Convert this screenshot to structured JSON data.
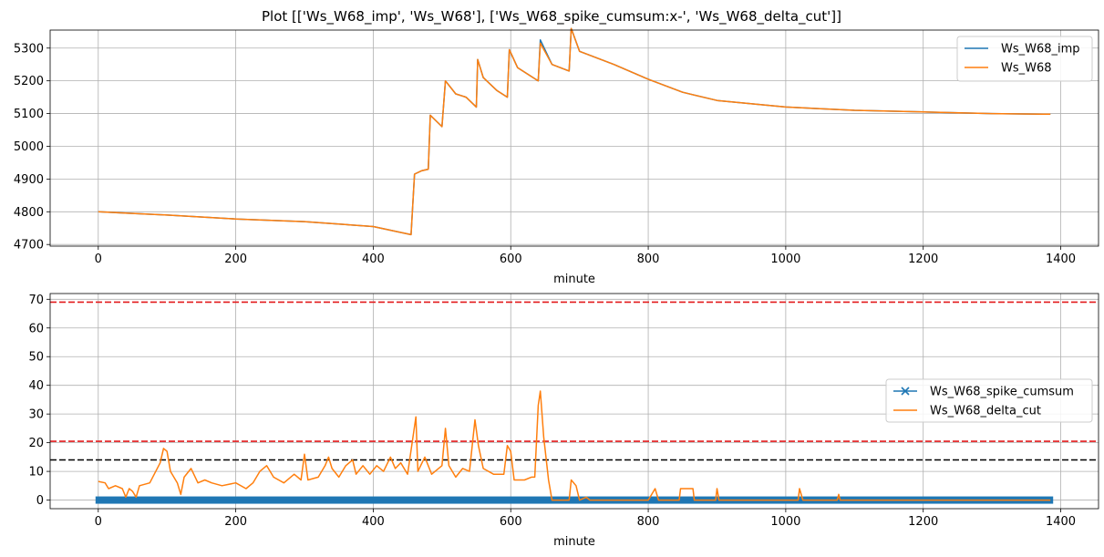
{
  "figure": {
    "title": "Plot [['Ws_W68_imp', 'Ws_W68'], ['Ws_W68_spike_cumsum:x-', 'Ws_W68_delta_cut']]"
  },
  "colors": {
    "blue": "#1f77b4",
    "orange": "#ff7f0e",
    "red_dashed": "#e31a1c",
    "black_dashed": "#000000",
    "grid": "#b0b0b0"
  },
  "chart_data": [
    {
      "type": "line",
      "xlabel": "minute",
      "ylabel": "",
      "xlim": [
        -70,
        1455
      ],
      "ylim": [
        4695,
        5355
      ],
      "xticks": [
        0,
        200,
        400,
        600,
        800,
        1000,
        1200,
        1400
      ],
      "yticks": [
        4700,
        4800,
        4900,
        5000,
        5100,
        5200,
        5300
      ],
      "grid": true,
      "legend_position": "top-right",
      "series": [
        {
          "name": "Ws_W68_imp",
          "color": "blue",
          "points": [
            [
              0,
              4800
            ],
            [
              50,
              4795
            ],
            [
              100,
              4790
            ],
            [
              200,
              4778
            ],
            [
              300,
              4770
            ],
            [
              400,
              4755
            ],
            [
              455,
              4730
            ],
            [
              460,
              4915
            ],
            [
              470,
              4925
            ],
            [
              480,
              4930
            ],
            [
              483,
              5095
            ],
            [
              500,
              5060
            ],
            [
              505,
              5200
            ],
            [
              520,
              5160
            ],
            [
              535,
              5150
            ],
            [
              550,
              5120
            ],
            [
              552,
              5265
            ],
            [
              560,
              5210
            ],
            [
              580,
              5170
            ],
            [
              595,
              5150
            ],
            [
              598,
              5295
            ],
            [
              610,
              5240
            ],
            [
              640,
              5200
            ],
            [
              643,
              5325
            ],
            [
              660,
              5250
            ],
            [
              685,
              5230
            ],
            [
              688,
              5360
            ],
            [
              700,
              5290
            ],
            [
              750,
              5250
            ],
            [
              800,
              5205
            ],
            [
              850,
              5165
            ],
            [
              900,
              5140
            ],
            [
              1000,
              5120
            ],
            [
              1100,
              5110
            ],
            [
              1200,
              5105
            ],
            [
              1300,
              5100
            ],
            [
              1385,
              5098
            ]
          ]
        },
        {
          "name": "Ws_W68",
          "color": "orange",
          "points": [
            [
              0,
              4800
            ],
            [
              50,
              4795
            ],
            [
              100,
              4790
            ],
            [
              200,
              4778
            ],
            [
              300,
              4770
            ],
            [
              400,
              4755
            ],
            [
              455,
              4730
            ],
            [
              460,
              4915
            ],
            [
              470,
              4925
            ],
            [
              480,
              4930
            ],
            [
              483,
              5095
            ],
            [
              500,
              5060
            ],
            [
              505,
              5200
            ],
            [
              520,
              5160
            ],
            [
              535,
              5150
            ],
            [
              550,
              5120
            ],
            [
              552,
              5265
            ],
            [
              560,
              5210
            ],
            [
              580,
              5170
            ],
            [
              595,
              5150
            ],
            [
              598,
              5295
            ],
            [
              610,
              5240
            ],
            [
              640,
              5200
            ],
            [
              643,
              5315
            ],
            [
              660,
              5250
            ],
            [
              685,
              5230
            ],
            [
              688,
              5360
            ],
            [
              700,
              5290
            ],
            [
              750,
              5250
            ],
            [
              800,
              5205
            ],
            [
              850,
              5165
            ],
            [
              900,
              5140
            ],
            [
              1000,
              5120
            ],
            [
              1100,
              5110
            ],
            [
              1200,
              5105
            ],
            [
              1300,
              5100
            ],
            [
              1385,
              5098
            ]
          ]
        }
      ]
    },
    {
      "type": "line",
      "xlabel": "minute",
      "ylabel": "",
      "xlim": [
        -70,
        1455
      ],
      "ylim": [
        -3,
        72
      ],
      "xticks": [
        0,
        200,
        400,
        600,
        800,
        1000,
        1200,
        1400
      ],
      "yticks": [
        0,
        10,
        20,
        30,
        40,
        50,
        60,
        70
      ],
      "grid": true,
      "legend_position": "center-right",
      "hlines": [
        {
          "y": 69,
          "color": "red_dashed"
        },
        {
          "y": 20.5,
          "color": "red_dashed"
        },
        {
          "y": 14,
          "color": "black_dashed"
        }
      ],
      "series": [
        {
          "name": "Ws_W68_spike_cumsum",
          "color": "blue",
          "marker": "x",
          "points": [
            [
              0,
              0
            ],
            [
              1385,
              0
            ]
          ]
        },
        {
          "name": "Ws_W68_delta_cut",
          "color": "orange",
          "points": [
            [
              0,
              6.5
            ],
            [
              10,
              6
            ],
            [
              15,
              4
            ],
            [
              25,
              5
            ],
            [
              35,
              4
            ],
            [
              40,
              1
            ],
            [
              45,
              4
            ],
            [
              50,
              3
            ],
            [
              55,
              1
            ],
            [
              60,
              5
            ],
            [
              75,
              6
            ],
            [
              90,
              13
            ],
            [
              95,
              18
            ],
            [
              100,
              17
            ],
            [
              105,
              10
            ],
            [
              115,
              6
            ],
            [
              120,
              2
            ],
            [
              125,
              8
            ],
            [
              135,
              11
            ],
            [
              145,
              6
            ],
            [
              155,
              7
            ],
            [
              165,
              6
            ],
            [
              180,
              5
            ],
            [
              200,
              6
            ],
            [
              215,
              4
            ],
            [
              225,
              6
            ],
            [
              235,
              10
            ],
            [
              245,
              12
            ],
            [
              255,
              8
            ],
            [
              270,
              6
            ],
            [
              285,
              9
            ],
            [
              295,
              7
            ],
            [
              300,
              16
            ],
            [
              305,
              7
            ],
            [
              320,
              8
            ],
            [
              330,
              12
            ],
            [
              335,
              15
            ],
            [
              340,
              11
            ],
            [
              350,
              8
            ],
            [
              360,
              12
            ],
            [
              370,
              14
            ],
            [
              375,
              9
            ],
            [
              385,
              12
            ],
            [
              395,
              9
            ],
            [
              405,
              12
            ],
            [
              415,
              10
            ],
            [
              425,
              15
            ],
            [
              432,
              11
            ],
            [
              440,
              13
            ],
            [
              450,
              9
            ],
            [
              462,
              29
            ],
            [
              465,
              10
            ],
            [
              475,
              15
            ],
            [
              485,
              9
            ],
            [
              500,
              12
            ],
            [
              505,
              25
            ],
            [
              510,
              12
            ],
            [
              520,
              8
            ],
            [
              530,
              11
            ],
            [
              540,
              10
            ],
            [
              548,
              28
            ],
            [
              553,
              19
            ],
            [
              560,
              11
            ],
            [
              575,
              9
            ],
            [
              590,
              9
            ],
            [
              595,
              19
            ],
            [
              600,
              17
            ],
            [
              605,
              7
            ],
            [
              620,
              7
            ],
            [
              630,
              8
            ],
            [
              635,
              8
            ],
            [
              640,
              33
            ],
            [
              643,
              38
            ],
            [
              648,
              22
            ],
            [
              655,
              7
            ],
            [
              660,
              0
            ],
            [
              685,
              0
            ],
            [
              688,
              7
            ],
            [
              695,
              5
            ],
            [
              700,
              0
            ],
            [
              710,
              1
            ],
            [
              715,
              0
            ],
            [
              800,
              0
            ],
            [
              810,
              4
            ],
            [
              815,
              0
            ],
            [
              845,
              0
            ],
            [
              847,
              4
            ],
            [
              865,
              4
            ],
            [
              867,
              0
            ],
            [
              898,
              0
            ],
            [
              900,
              4
            ],
            [
              903,
              0
            ],
            [
              1018,
              0
            ],
            [
              1020,
              4
            ],
            [
              1025,
              0
            ],
            [
              1075,
              0
            ],
            [
              1077,
              2
            ],
            [
              1079,
              0
            ],
            [
              1385,
              0
            ]
          ]
        }
      ]
    }
  ]
}
